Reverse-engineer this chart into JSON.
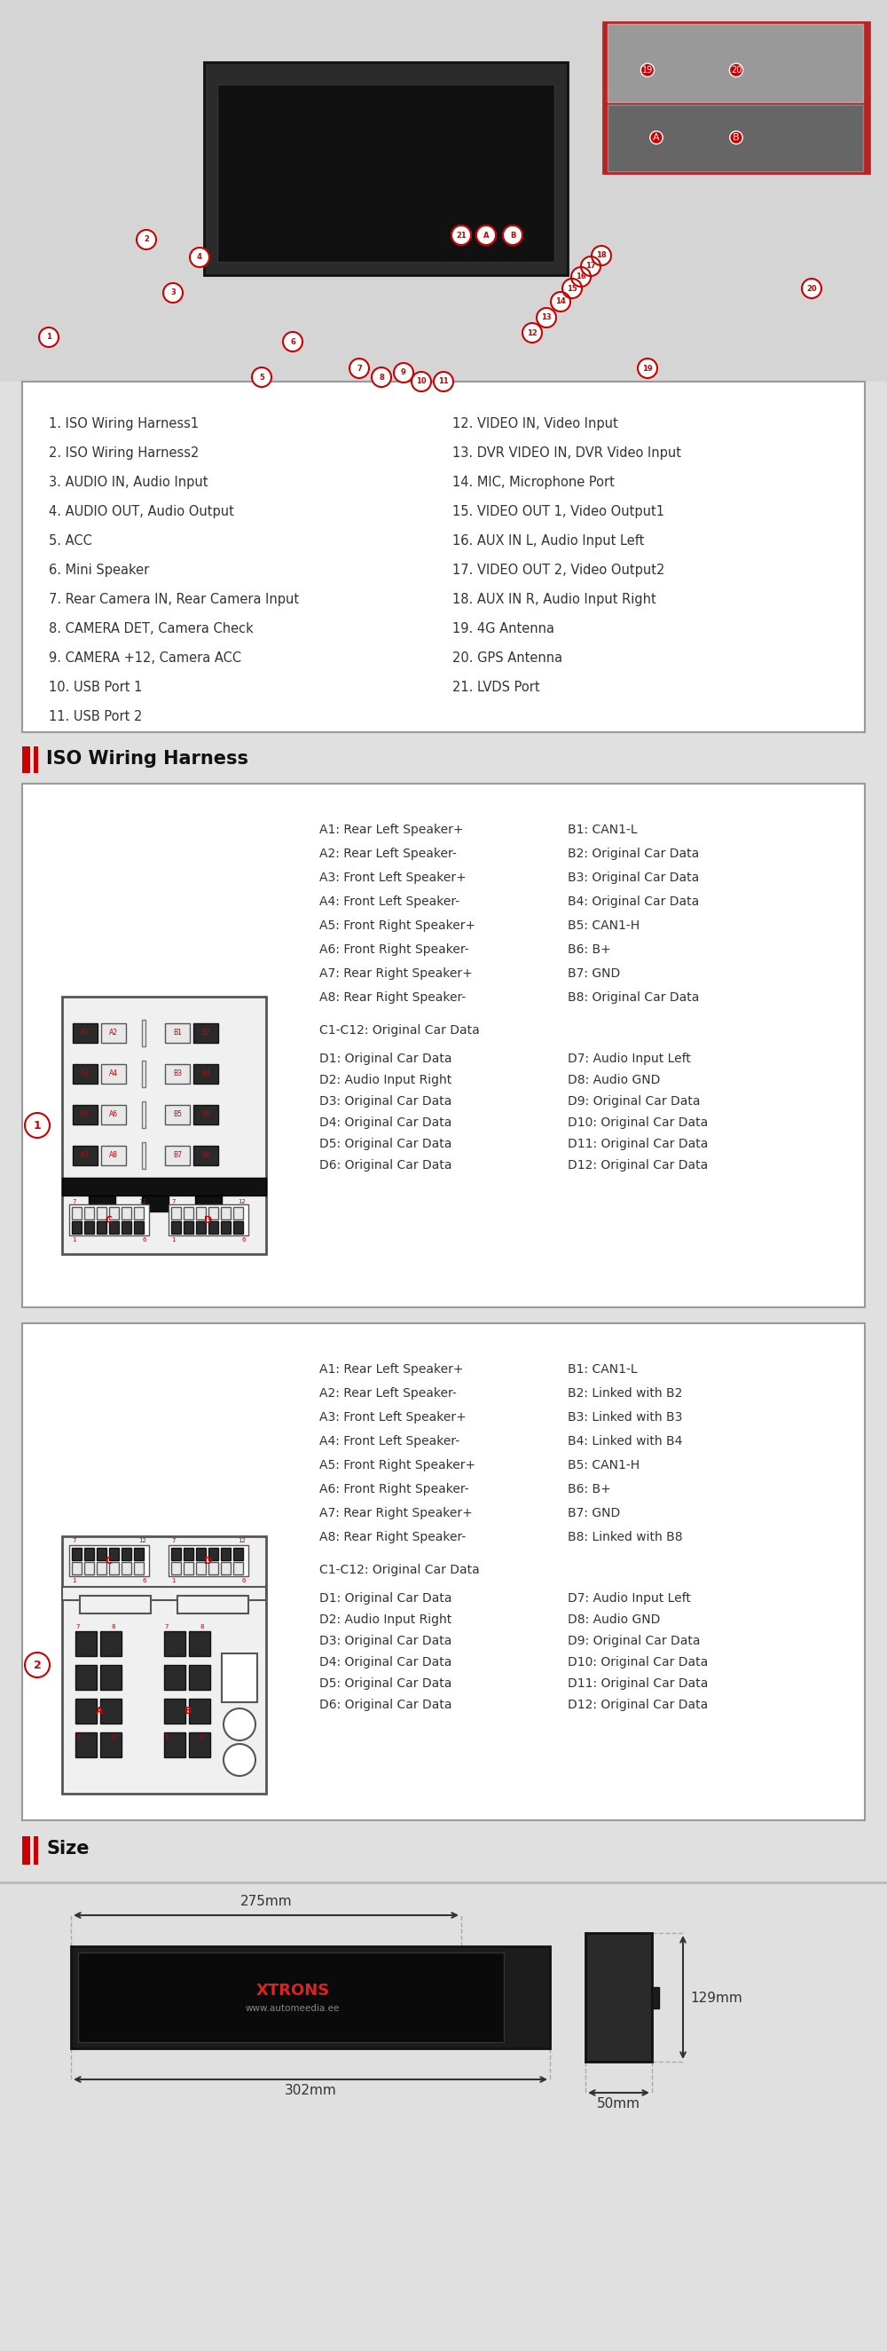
{
  "bg_color": "#e0e0e0",
  "white": "#ffffff",
  "black": "#000000",
  "red": "#cc0000",
  "items_left": [
    "1. ISO Wiring Harness1",
    "2. ISO Wiring Harness2",
    "3. AUDIO IN, Audio Input",
    "4. AUDIO OUT, Audio Output",
    "5. ACC",
    "6. Mini Speaker",
    "7. Rear Camera IN, Rear Camera Input",
    "8. CAMERA DET, Camera Check",
    "9. CAMERA +12, Camera ACC",
    "10. USB Port 1",
    "11. USB Port 2"
  ],
  "items_right": [
    "12. VIDEO IN, Video Input",
    "13. DVR VIDEO IN, DVR Video Input",
    "14. MIC, Microphone Port",
    "15. VIDEO OUT 1, Video Output1",
    "16. AUX IN L, Audio Input Left",
    "17. VIDEO OUT 2, Video Output2",
    "18. AUX IN R, Audio Input Right",
    "19. 4G Antenna",
    "20. GPS Antenna",
    "21. LVDS Port"
  ],
  "iso_title": "ISO Wiring Harness",
  "harness1_AB": [
    [
      "A1: Rear Left Speaker+",
      "B1: CAN1-L"
    ],
    [
      "A2: Rear Left Speaker-",
      "B2: Original Car Data"
    ],
    [
      "A3: Front Left Speaker+",
      "B3: Original Car Data"
    ],
    [
      "A4: Front Left Speaker-",
      "B4: Original Car Data"
    ],
    [
      "A5: Front Right Speaker+",
      "B5: CAN1-H"
    ],
    [
      "A6: Front Right Speaker-",
      "B6: B+"
    ],
    [
      "A7: Rear Right Speaker+",
      "B7: GND"
    ],
    [
      "A8: Rear Right Speaker-",
      "B8: Original Car Data"
    ]
  ],
  "harness1_C": "C1-C12: Original Car Data",
  "harness1_D_left": [
    "D1: Original Car Data",
    "D2: Audio Input Right",
    "D3: Original Car Data",
    "D4: Original Car Data",
    "D5: Original Car Data",
    "D6: Original Car Data"
  ],
  "harness1_D_right": [
    "D7: Audio Input Left",
    "D8: Audio GND",
    "D9: Original Car Data",
    "D10: Original Car Data",
    "D11: Original Car Data",
    "D12: Original Car Data"
  ],
  "harness2_AB": [
    [
      "A1: Rear Left Speaker+",
      "B1: CAN1-L"
    ],
    [
      "A2: Rear Left Speaker-",
      "B2: Linked with B2"
    ],
    [
      "A3: Front Left Speaker+",
      "B3: Linked with B3"
    ],
    [
      "A4: Front Left Speaker-",
      "B4: Linked with B4"
    ],
    [
      "A5: Front Right Speaker+",
      "B5: CAN1-H"
    ],
    [
      "A6: Front Right Speaker-",
      "B6: B+"
    ],
    [
      "A7: Rear Right Speaker+",
      "B7: GND"
    ],
    [
      "A8: Rear Right Speaker-",
      "B8: Linked with B8"
    ]
  ],
  "harness2_C": "C1-C12: Original Car Data",
  "harness2_D_left": [
    "D1: Original Car Data",
    "D2: Audio Input Right",
    "D3: Original Car Data",
    "D4: Original Car Data",
    "D5: Original Car Data",
    "D6: Original Car Data"
  ],
  "harness2_D_right": [
    "D7: Audio Input Left",
    "D8: Audio GND",
    "D9: Original Car Data",
    "D10: Original Car Data",
    "D11: Original Car Data",
    "D12: Original Car Data"
  ],
  "size_title": "Size",
  "width_top": "275mm",
  "width_bottom": "302mm",
  "height_right": "129mm",
  "depth": "50mm"
}
